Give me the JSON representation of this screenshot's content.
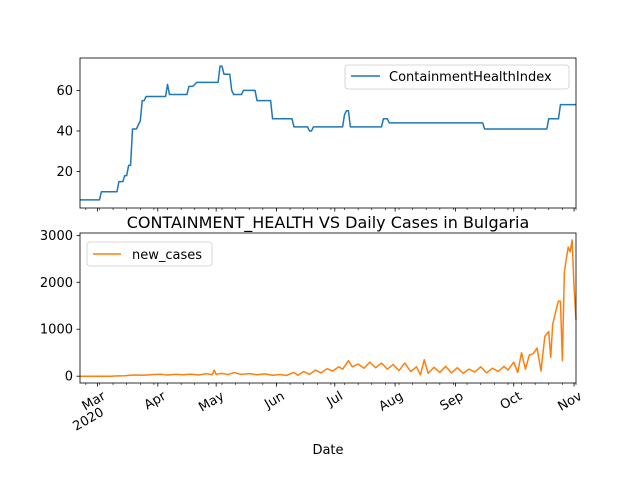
{
  "chart_data": [
    {
      "type": "line",
      "title": "",
      "xlabel": "",
      "ylabel": "",
      "x_range": [
        "2020-02-21",
        "2020-11-02"
      ],
      "ylim": [
        2,
        76
      ],
      "y_ticks": [
        20,
        40,
        60
      ],
      "grid": false,
      "legend_position": "top-right",
      "series": [
        {
          "name": "ContainmentHealthIndex",
          "color": "#1f77b4",
          "points": [
            [
              "2020-02-21",
              6.0
            ],
            [
              "2020-03-02",
              6.0
            ],
            [
              "2020-03-03",
              10.0
            ],
            [
              "2020-03-11",
              10.0
            ],
            [
              "2020-03-12",
              15.0
            ],
            [
              "2020-03-14",
              15.0
            ],
            [
              "2020-03-15",
              18.0
            ],
            [
              "2020-03-16",
              18.0
            ],
            [
              "2020-03-17",
              23.0
            ],
            [
              "2020-03-18",
              23.0
            ],
            [
              "2020-03-19",
              41.0
            ],
            [
              "2020-03-21",
              41.0
            ],
            [
              "2020-03-23",
              45.0
            ],
            [
              "2020-03-24",
              55.0
            ],
            [
              "2020-03-25",
              55.0
            ],
            [
              "2020-03-26",
              57.0
            ],
            [
              "2020-04-05",
              57.0
            ],
            [
              "2020-04-06",
              63.0
            ],
            [
              "2020-04-07",
              58.0
            ],
            [
              "2020-04-16",
              58.0
            ],
            [
              "2020-04-17",
              62.0
            ],
            [
              "2020-04-19",
              62.0
            ],
            [
              "2020-04-20",
              63.0
            ],
            [
              "2020-04-21",
              64.0
            ],
            [
              "2020-05-02",
              64.0
            ],
            [
              "2020-05-03",
              72.0
            ],
            [
              "2020-05-04",
              72.0
            ],
            [
              "2020-05-05",
              68.0
            ],
            [
              "2020-05-08",
              68.0
            ],
            [
              "2020-05-09",
              60.0
            ],
            [
              "2020-05-10",
              58.0
            ],
            [
              "2020-05-14",
              58.0
            ],
            [
              "2020-05-15",
              60.0
            ],
            [
              "2020-05-21",
              60.0
            ],
            [
              "2020-05-22",
              55.0
            ],
            [
              "2020-05-29",
              55.0
            ],
            [
              "2020-05-30",
              46.0
            ],
            [
              "2020-06-09",
              46.0
            ],
            [
              "2020-06-10",
              42.0
            ],
            [
              "2020-06-17",
              42.0
            ],
            [
              "2020-06-18",
              40.0
            ],
            [
              "2020-06-19",
              40.0
            ],
            [
              "2020-06-20",
              42.0
            ],
            [
              "2020-07-05",
              42.0
            ],
            [
              "2020-07-06",
              48.0
            ],
            [
              "2020-07-07",
              50.0
            ],
            [
              "2020-07-08",
              50.0
            ],
            [
              "2020-07-09",
              42.0
            ],
            [
              "2020-07-25",
              42.0
            ],
            [
              "2020-07-26",
              46.0
            ],
            [
              "2020-07-28",
              46.0
            ],
            [
              "2020-07-29",
              44.0
            ],
            [
              "2020-09-15",
              44.0
            ],
            [
              "2020-09-16",
              41.0
            ],
            [
              "2020-10-18",
              41.0
            ],
            [
              "2020-10-19",
              46.0
            ],
            [
              "2020-10-24",
              46.0
            ],
            [
              "2020-10-25",
              53.0
            ],
            [
              "2020-11-02",
              53.0
            ]
          ]
        }
      ]
    },
    {
      "type": "line",
      "title": "CONTAINMENT_HEALTH VS Daily Cases in Bulgaria",
      "xlabel": "Date",
      "ylabel": "",
      "x_range": [
        "2020-02-21",
        "2020-11-02"
      ],
      "ylim": [
        -145,
        3050
      ],
      "y_ticks": [
        0,
        1000,
        2000,
        3000
      ],
      "x_ticks": [
        "2020-03-01",
        "2020-04-01",
        "2020-05-01",
        "2020-06-01",
        "2020-07-01",
        "2020-08-01",
        "2020-09-01",
        "2020-10-01",
        "2020-11-01"
      ],
      "x_tick_labels": [
        "Mar",
        "Apr",
        "May",
        "Jun",
        "Jul",
        "Aug",
        "Sep",
        "Oct",
        "Nov"
      ],
      "x_tick_sublabel": "2020",
      "grid": false,
      "legend_position": "top-left",
      "series": [
        {
          "name": "new_cases",
          "color": "#ff7f0e",
          "points": [
            [
              "2020-02-21",
              0
            ],
            [
              "2020-03-08",
              0
            ],
            [
              "2020-03-10",
              4
            ],
            [
              "2020-03-15",
              10
            ],
            [
              "2020-03-20",
              25
            ],
            [
              "2020-03-25",
              20
            ],
            [
              "2020-03-30",
              35
            ],
            [
              "2020-04-03",
              40
            ],
            [
              "2020-04-06",
              25
            ],
            [
              "2020-04-10",
              40
            ],
            [
              "2020-04-14",
              30
            ],
            [
              "2020-04-18",
              45
            ],
            [
              "2020-04-22",
              25
            ],
            [
              "2020-04-26",
              55
            ],
            [
              "2020-04-29",
              30
            ],
            [
              "2020-04-30",
              130
            ],
            [
              "2020-05-01",
              40
            ],
            [
              "2020-05-04",
              60
            ],
            [
              "2020-05-07",
              35
            ],
            [
              "2020-05-10",
              75
            ],
            [
              "2020-05-14",
              40
            ],
            [
              "2020-05-18",
              55
            ],
            [
              "2020-05-22",
              30
            ],
            [
              "2020-05-26",
              50
            ],
            [
              "2020-05-30",
              20
            ],
            [
              "2020-06-03",
              35
            ],
            [
              "2020-06-06",
              15
            ],
            [
              "2020-06-10",
              80
            ],
            [
              "2020-06-12",
              20
            ],
            [
              "2020-06-15",
              100
            ],
            [
              "2020-06-18",
              40
            ],
            [
              "2020-06-21",
              130
            ],
            [
              "2020-06-24",
              70
            ],
            [
              "2020-06-27",
              160
            ],
            [
              "2020-06-30",
              110
            ],
            [
              "2020-07-03",
              200
            ],
            [
              "2020-07-05",
              150
            ],
            [
              "2020-07-08",
              330
            ],
            [
              "2020-07-10",
              200
            ],
            [
              "2020-07-13",
              260
            ],
            [
              "2020-07-16",
              170
            ],
            [
              "2020-07-19",
              300
            ],
            [
              "2020-07-22",
              180
            ],
            [
              "2020-07-25",
              280
            ],
            [
              "2020-07-28",
              150
            ],
            [
              "2020-07-31",
              250
            ],
            [
              "2020-08-03",
              120
            ],
            [
              "2020-08-06",
              280
            ],
            [
              "2020-08-09",
              100
            ],
            [
              "2020-08-12",
              200
            ],
            [
              "2020-08-14",
              30
            ],
            [
              "2020-08-16",
              350
            ],
            [
              "2020-08-18",
              60
            ],
            [
              "2020-08-21",
              190
            ],
            [
              "2020-08-24",
              80
            ],
            [
              "2020-08-27",
              210
            ],
            [
              "2020-08-30",
              70
            ],
            [
              "2020-09-02",
              180
            ],
            [
              "2020-09-05",
              60
            ],
            [
              "2020-09-08",
              150
            ],
            [
              "2020-09-11",
              90
            ],
            [
              "2020-09-14",
              200
            ],
            [
              "2020-09-17",
              70
            ],
            [
              "2020-09-20",
              170
            ],
            [
              "2020-09-23",
              100
            ],
            [
              "2020-09-26",
              210
            ],
            [
              "2020-09-28",
              130
            ],
            [
              "2020-10-01",
              300
            ],
            [
              "2020-10-03",
              80
            ],
            [
              "2020-10-05",
              500
            ],
            [
              "2020-10-07",
              150
            ],
            [
              "2020-10-09",
              450
            ],
            [
              "2020-10-11",
              480
            ],
            [
              "2020-10-13",
              600
            ],
            [
              "2020-10-15",
              110
            ],
            [
              "2020-10-17",
              850
            ],
            [
              "2020-10-19",
              950
            ],
            [
              "2020-10-20",
              400
            ],
            [
              "2020-10-21",
              1100
            ],
            [
              "2020-10-23",
              1450
            ],
            [
              "2020-10-24",
              1600
            ],
            [
              "2020-10-25",
              1600
            ],
            [
              "2020-10-26",
              330
            ],
            [
              "2020-10-27",
              2200
            ],
            [
              "2020-10-28",
              2500
            ],
            [
              "2020-10-29",
              2750
            ],
            [
              "2020-10-30",
              2650
            ],
            [
              "2020-10-31",
              2900
            ],
            [
              "2020-11-01",
              1900
            ],
            [
              "2020-11-02",
              1200
            ]
          ]
        }
      ]
    }
  ]
}
